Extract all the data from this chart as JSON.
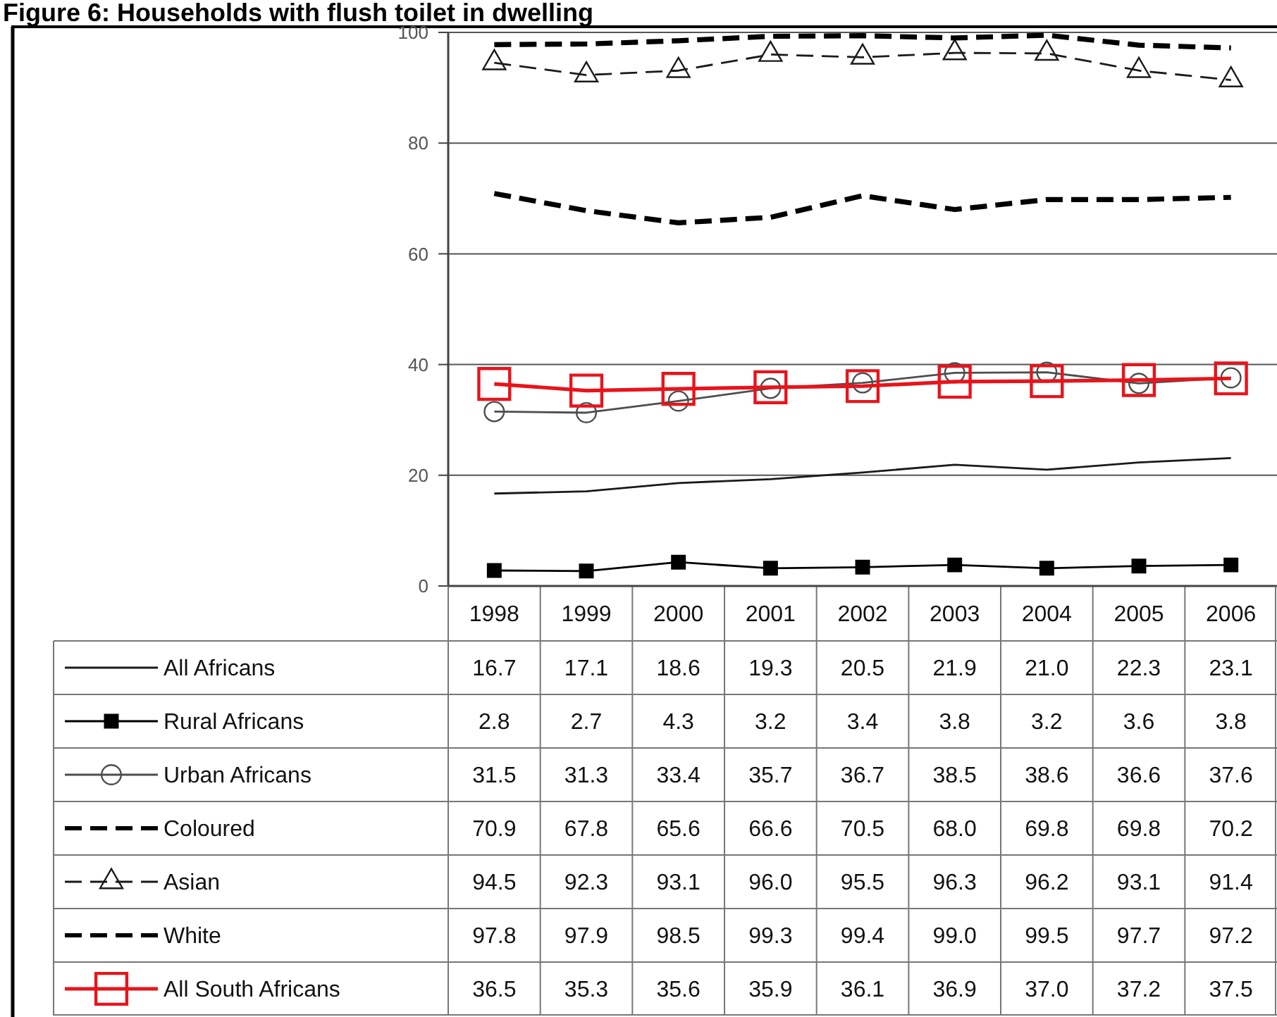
{
  "chart_data": {
    "type": "line",
    "title": "Figure 6: Households with flush toilet in dwelling",
    "categories": [
      "1998",
      "1999",
      "2000",
      "2001",
      "2002",
      "2003",
      "2004",
      "2005",
      "2006"
    ],
    "ylim": [
      0,
      100
    ],
    "yticks": [
      0,
      20,
      40,
      60,
      80,
      100
    ],
    "grid": "y",
    "legend": "bottom",
    "series": [
      {
        "name": "All Africans",
        "color": "#1a1a1a",
        "marker": "none",
        "line_style": "solid",
        "values": [
          16.7,
          17.1,
          18.6,
          19.3,
          20.5,
          21.9,
          21.0,
          22.3,
          23.1
        ],
        "value_labels": [
          "16.7",
          "17.1",
          "18.6",
          "19.3",
          "20.5",
          "21.9",
          "21.0",
          "22.3",
          "23.1"
        ]
      },
      {
        "name": "Rural Africans",
        "color": "#000000",
        "marker": "square",
        "line_style": "solid",
        "values": [
          2.8,
          2.7,
          4.3,
          3.2,
          3.4,
          3.8,
          3.2,
          3.6,
          3.8
        ],
        "value_labels": [
          "2.8",
          "2.7",
          "4.3",
          "3.2",
          "3.4",
          "3.8",
          "3.2",
          "3.6",
          "3.8"
        ]
      },
      {
        "name": "Urban Africans",
        "color": "#4d4d4d",
        "marker": "circle",
        "line_style": "solid",
        "values": [
          31.5,
          31.3,
          33.4,
          35.7,
          36.7,
          38.5,
          38.6,
          36.6,
          37.6
        ],
        "value_labels": [
          "31.5",
          "31.3",
          "33.4",
          "35.7",
          "36.7",
          "38.5",
          "38.6",
          "36.6",
          "37.6"
        ]
      },
      {
        "name": "Coloured",
        "color": "#000000",
        "marker": "none",
        "line_style": "dashed",
        "values": [
          70.9,
          67.8,
          65.6,
          66.6,
          70.5,
          68.0,
          69.8,
          69.8,
          70.2
        ],
        "value_labels": [
          "70.9",
          "67.8",
          "65.6",
          "66.6",
          "70.5",
          "68.0",
          "69.8",
          "69.8",
          "70.2"
        ]
      },
      {
        "name": "Asian",
        "color": "#1a1a1a",
        "marker": "triangle",
        "line_style": "dashed",
        "values": [
          94.5,
          92.3,
          93.1,
          96.0,
          95.5,
          96.3,
          96.2,
          93.1,
          91.4
        ],
        "value_labels": [
          "94.5",
          "92.3",
          "93.1",
          "96.0",
          "95.5",
          "96.3",
          "96.2",
          "93.1",
          "91.4"
        ]
      },
      {
        "name": "White",
        "color": "#000000",
        "marker": "none",
        "line_style": "dashed",
        "values": [
          97.8,
          97.9,
          98.5,
          99.3,
          99.4,
          99.0,
          99.5,
          97.7,
          97.2
        ],
        "value_labels": [
          "97.8",
          "97.9",
          "98.5",
          "99.3",
          "99.4",
          "99.0",
          "99.5",
          "97.7",
          "97.2"
        ]
      },
      {
        "name": "All South Africans",
        "color": "#e8141c",
        "marker": "square",
        "line_style": "solid",
        "values": [
          36.5,
          35.3,
          35.6,
          35.9,
          36.1,
          36.9,
          37.0,
          37.2,
          37.5
        ],
        "value_labels": [
          "36.5",
          "35.3",
          "35.6",
          "35.9",
          "36.1",
          "36.9",
          "37.0",
          "37.2",
          "37.5"
        ]
      }
    ]
  }
}
